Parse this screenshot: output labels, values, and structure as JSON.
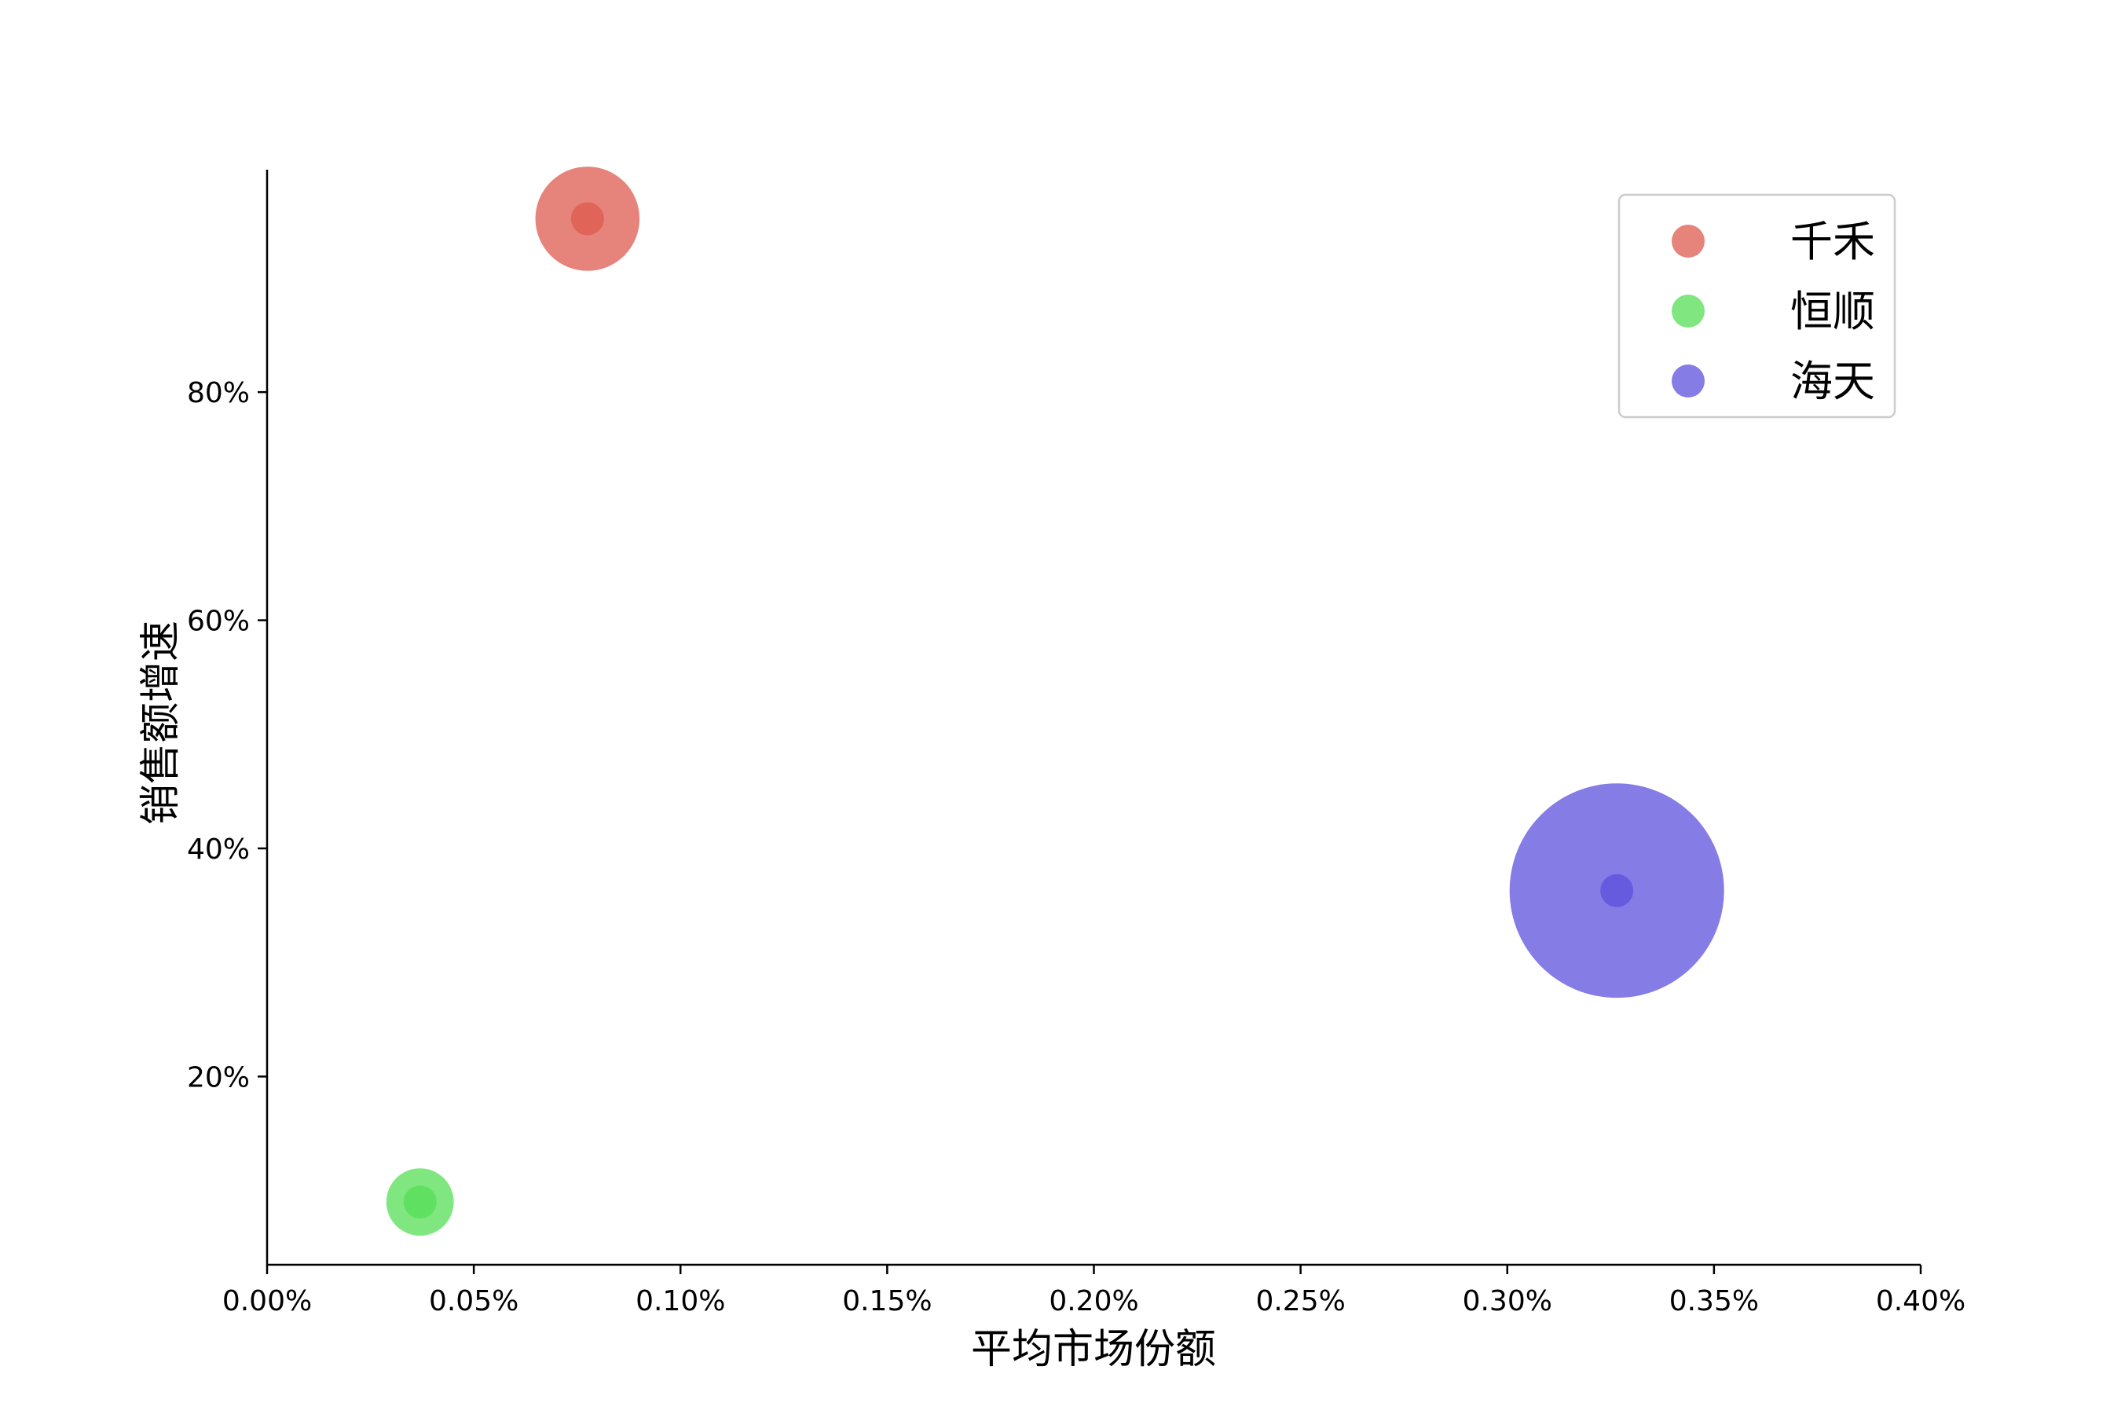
{
  "chart_data": {
    "type": "scatter",
    "title": "",
    "xlabel": "平均市场份额",
    "ylabel": "销售额增速",
    "xlim": [
      0.0,
      0.4
    ],
    "ylim": [
      3.5,
      99.5
    ],
    "x_ticks": [
      0.0,
      0.05,
      0.1,
      0.15,
      0.2,
      0.25,
      0.3,
      0.35,
      0.4
    ],
    "x_tick_labels": [
      "0.00%",
      "0.05%",
      "0.10%",
      "0.15%",
      "0.20%",
      "0.25%",
      "0.30%",
      "0.35%",
      "0.40%"
    ],
    "y_ticks": [
      20,
      40,
      60,
      80
    ],
    "y_tick_labels": [
      "20%",
      "40%",
      "60%",
      "80%"
    ],
    "grid": false,
    "legend_position": "top-right",
    "series": [
      {
        "name": "千禾",
        "color": "#dd5a4e",
        "x": 0.0775,
        "y": 95.2,
        "size": 0.85
      },
      {
        "name": "恒顺",
        "color": "#55dd55",
        "x": 0.037,
        "y": 9.0,
        "size": 0.55
      },
      {
        "name": "海天",
        "color": "#5c50dc",
        "x": 0.3265,
        "y": 36.3,
        "size": 1.75
      }
    ]
  }
}
